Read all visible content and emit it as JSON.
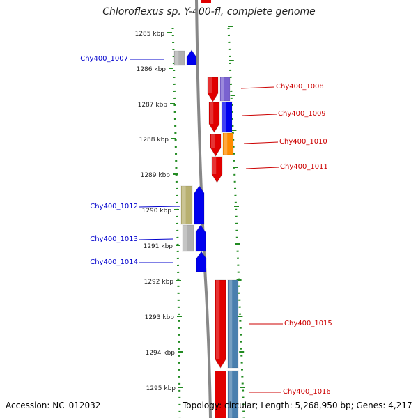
{
  "title": "Chloroflexus sp. Y-400-fl, complete genome",
  "footer": {
    "accession": "Accession: NC_012032",
    "topology": "Topology: circular; Length: 5,268,950 bp; Genes: 4,217"
  },
  "ticks": [
    "1285 kbp",
    "1286 kbp",
    "1287 kbp",
    "1288 kbp",
    "1289 kbp",
    "1290 kbp",
    "1291 kbp",
    "1292 kbp",
    "1293 kbp",
    "1294 kbp",
    "1295 kbp"
  ],
  "colors": {
    "strand_minus_label": "#0000cc",
    "strand_plus_label": "#cc0000",
    "tick": "#228b22",
    "backbone": "#888888",
    "red": "#e00000",
    "blue": "#0000ee",
    "grey": "#b0b0b0",
    "purple": "#7a62d0",
    "orange": "#ff8c00",
    "olive": "#b8b070",
    "steelblue": "#4a7fae"
  },
  "genes": [
    {
      "id": "g1007",
      "label": "Chy400_1007",
      "strand": "left",
      "color": "grey"
    },
    {
      "id": "g1007b",
      "label": "",
      "strand": "left",
      "color": "blue"
    },
    {
      "id": "g1008",
      "label": "Chy400_1008",
      "strand": "right",
      "color": "purple"
    },
    {
      "id": "g1009",
      "label": "Chy400_1009",
      "strand": "right",
      "color": "blue"
    },
    {
      "id": "g1010",
      "label": "Chy400_1010",
      "strand": "right",
      "color": "orange"
    },
    {
      "id": "g1011",
      "label": "Chy400_1011",
      "strand": "right",
      "color": "red"
    },
    {
      "id": "g1012",
      "label": "Chy400_1012",
      "strand": "left",
      "color": "olive"
    },
    {
      "id": "g1013",
      "label": "Chy400_1013",
      "strand": "left",
      "color": "grey"
    },
    {
      "id": "g1014",
      "label": "Chy400_1014",
      "strand": "left",
      "color": "blue"
    },
    {
      "id": "g1015",
      "label": "Chy400_1015",
      "strand": "right",
      "color": "steelblue"
    },
    {
      "id": "g1016",
      "label": "Chy400_1016",
      "strand": "right",
      "color": "steelblue"
    }
  ]
}
